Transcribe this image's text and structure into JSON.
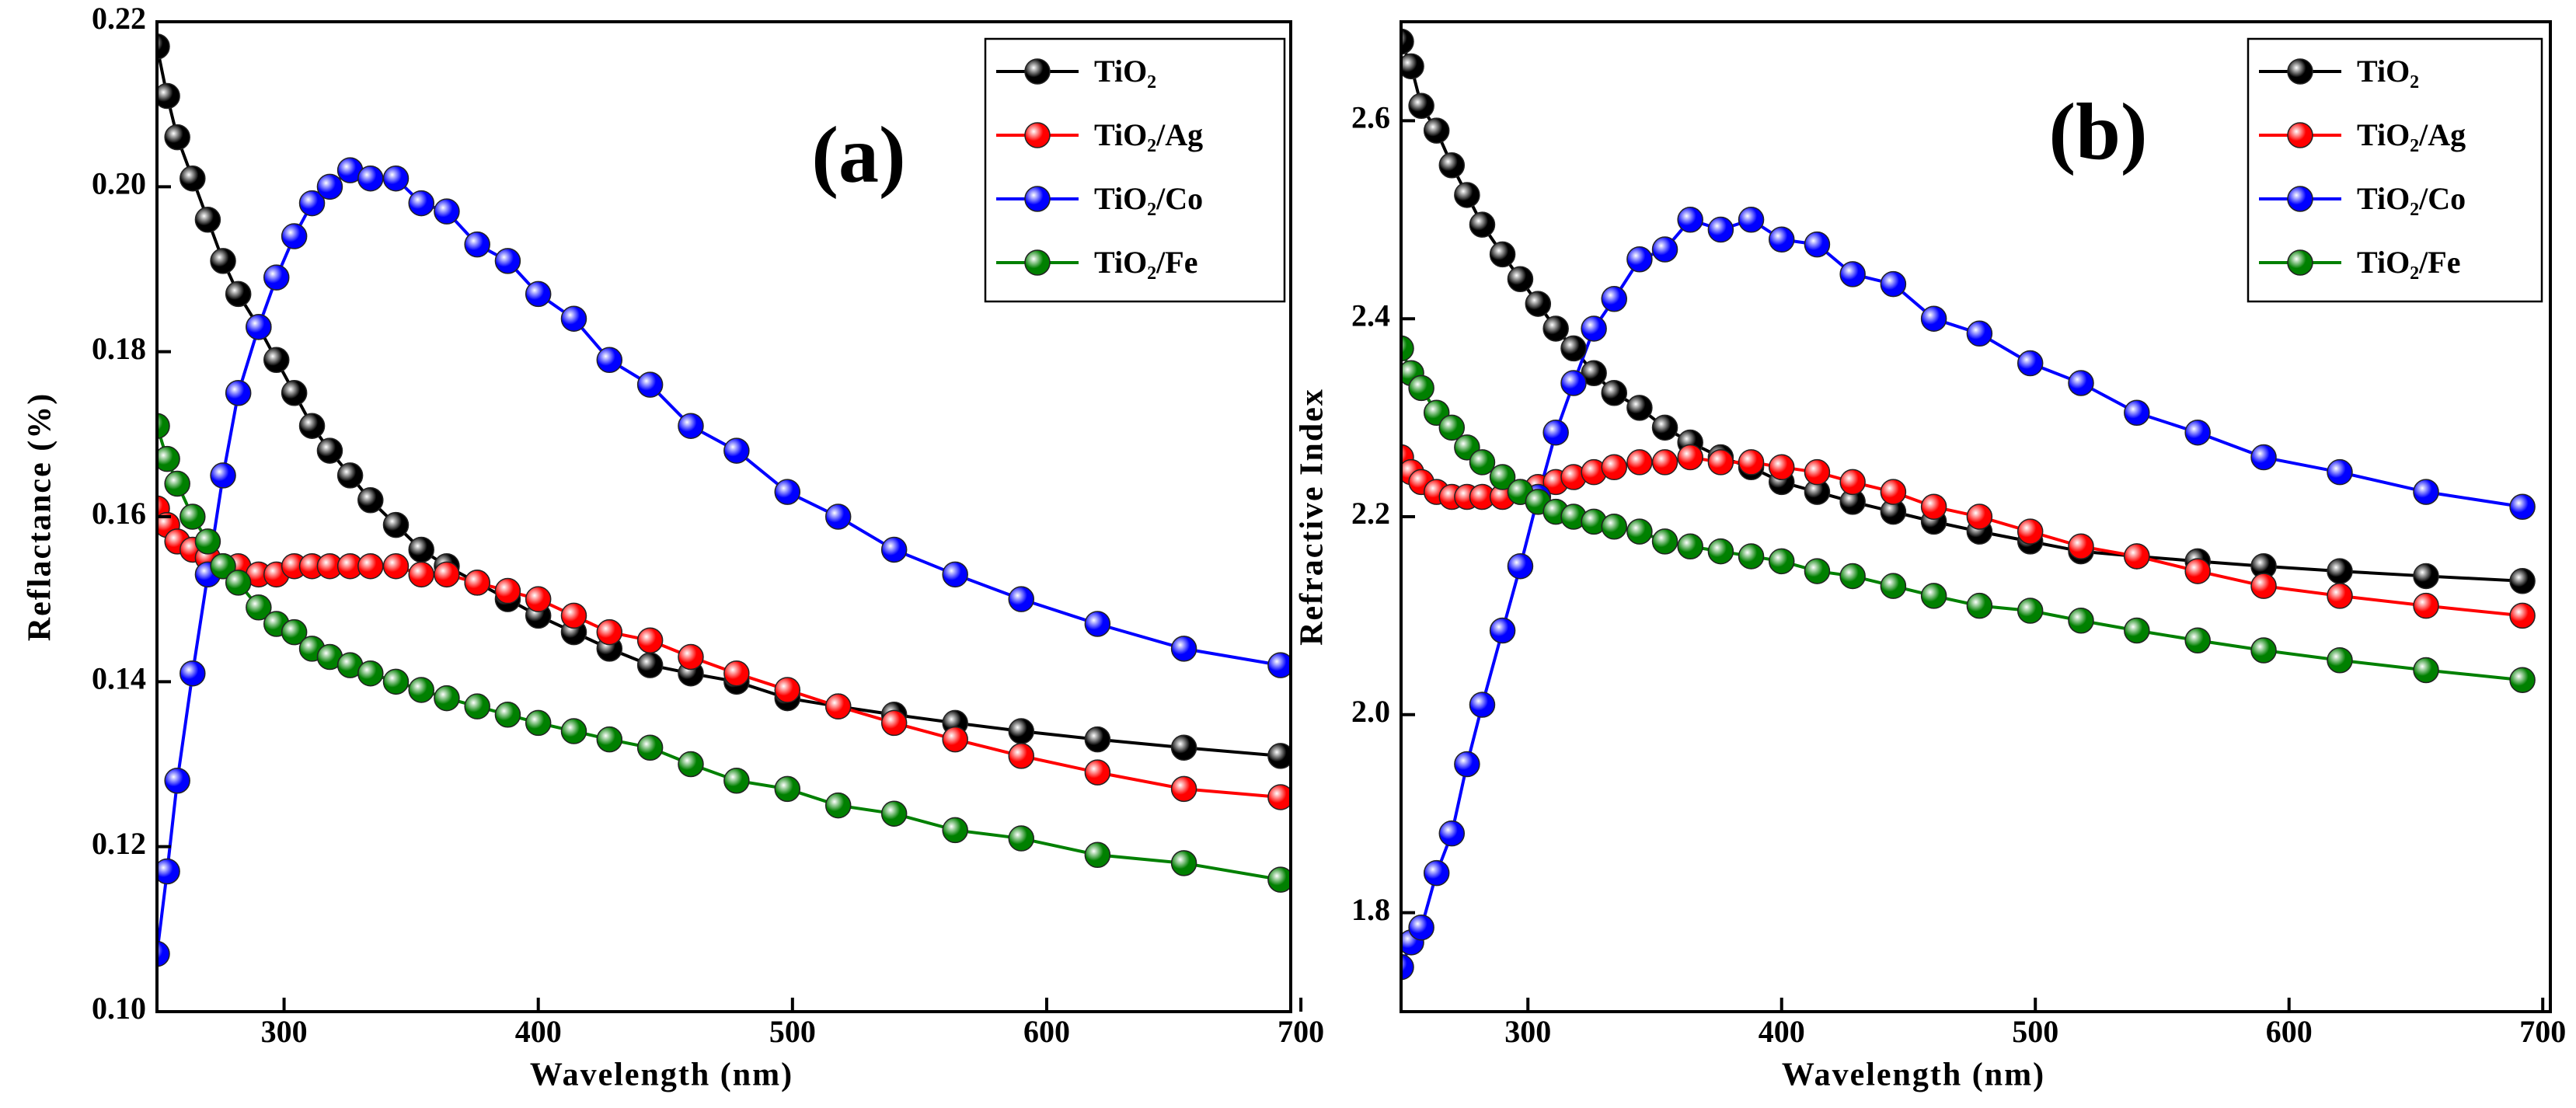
{
  "chart_data": [
    {
      "type": "line",
      "annotation": "(a)",
      "x_label": "Wavelength (nm)",
      "y_label": "Reflactance (%)",
      "xlim": [
        250,
        696
      ],
      "ylim": [
        0.1,
        0.22
      ],
      "xticks": [
        300,
        400,
        500,
        600,
        700
      ],
      "yticks": [
        {
          "value": 0.1,
          "label": "0.10"
        },
        0.12,
        0.14,
        0.16,
        0.18,
        {
          "value": 0.2,
          "label": "0.20"
        },
        0.22
      ],
      "x": [
        250,
        254,
        258,
        264,
        270,
        276,
        282,
        290,
        297,
        304,
        311,
        318,
        326,
        334,
        344,
        354,
        364,
        376,
        388,
        400,
        414,
        428,
        444,
        460,
        478,
        498,
        518,
        540,
        564,
        590,
        620,
        654,
        692
      ],
      "series": [
        {
          "name": "TiO₂",
          "color": "#000000",
          "values": [
            0.217,
            0.211,
            0.206,
            0.201,
            0.196,
            0.191,
            0.187,
            0.183,
            0.179,
            0.175,
            0.171,
            0.168,
            0.165,
            0.162,
            0.159,
            0.156,
            0.154,
            0.152,
            0.15,
            0.148,
            0.146,
            0.144,
            0.142,
            0.141,
            0.14,
            0.138,
            0.137,
            0.136,
            0.135,
            0.134,
            0.133,
            0.132,
            0.131
          ]
        },
        {
          "name": "TiO₂/Ag",
          "color": "#ff0000",
          "values": [
            0.161,
            0.159,
            0.157,
            0.156,
            0.155,
            0.154,
            0.154,
            0.153,
            0.153,
            0.154,
            0.154,
            0.154,
            0.154,
            0.154,
            0.154,
            0.153,
            0.153,
            0.152,
            0.151,
            0.15,
            0.148,
            0.146,
            0.145,
            0.143,
            0.141,
            0.139,
            0.137,
            0.135,
            0.133,
            0.131,
            0.129,
            0.127,
            0.126
          ]
        },
        {
          "name": "TiO₂/Co",
          "color": "#0000ff",
          "values": [
            0.107,
            0.117,
            0.128,
            0.141,
            0.153,
            0.165,
            0.175,
            0.183,
            0.189,
            0.194,
            0.198,
            0.2,
            0.202,
            0.201,
            0.201,
            0.198,
            0.197,
            0.193,
            0.191,
            0.187,
            0.184,
            0.179,
            0.176,
            0.171,
            0.168,
            0.163,
            0.16,
            0.156,
            0.153,
            0.15,
            0.147,
            0.144,
            0.142
          ]
        },
        {
          "name": "TiO₂/Fe",
          "color": "#008000",
          "values": [
            0.171,
            0.167,
            0.164,
            0.16,
            0.157,
            0.154,
            0.152,
            0.149,
            0.147,
            0.146,
            0.144,
            0.143,
            0.142,
            0.141,
            0.14,
            0.139,
            0.138,
            0.137,
            0.136,
            0.135,
            0.134,
            0.133,
            0.132,
            0.13,
            0.128,
            0.127,
            0.125,
            0.124,
            0.122,
            0.121,
            0.119,
            0.118,
            0.116
          ]
        }
      ]
    },
    {
      "type": "line",
      "annotation": "(b)",
      "x_label": "Wavelength (nm)",
      "y_label": "Refractive Index",
      "xlim": [
        250,
        703
      ],
      "ylim": [
        1.7,
        2.7
      ],
      "xticks": [
        300,
        400,
        500,
        600,
        700
      ],
      "yticks": [
        1.8,
        {
          "value": 2,
          "label": "2.0"
        },
        2.2,
        2.4,
        2.6
      ],
      "x": [
        250,
        254,
        258,
        264,
        270,
        276,
        282,
        290,
        297,
        304,
        311,
        318,
        326,
        334,
        344,
        354,
        364,
        376,
        388,
        400,
        414,
        428,
        444,
        460,
        478,
        498,
        518,
        540,
        564,
        590,
        620,
        654,
        692
      ],
      "series": [
        {
          "name": "TiO₂",
          "color": "#000000",
          "values": [
            2.68,
            2.655,
            2.615,
            2.59,
            2.555,
            2.525,
            2.495,
            2.465,
            2.44,
            2.415,
            2.39,
            2.37,
            2.345,
            2.325,
            2.31,
            2.29,
            2.275,
            2.26,
            2.25,
            2.235,
            2.225,
            2.215,
            2.205,
            2.195,
            2.185,
            2.175,
            2.165,
            2.16,
            2.155,
            2.15,
            2.145,
            2.14,
            2.135
          ]
        },
        {
          "name": "TiO₂/Ag",
          "color": "#ff0000",
          "values": [
            2.26,
            2.245,
            2.235,
            2.225,
            2.22,
            2.22,
            2.22,
            2.22,
            2.225,
            2.23,
            2.235,
            2.24,
            2.245,
            2.25,
            2.255,
            2.255,
            2.26,
            2.255,
            2.255,
            2.25,
            2.245,
            2.235,
            2.225,
            2.21,
            2.2,
            2.185,
            2.17,
            2.16,
            2.145,
            2.13,
            2.12,
            2.11,
            2.1
          ]
        },
        {
          "name": "TiO₂/Co",
          "color": "#0000ff",
          "values": [
            1.745,
            1.77,
            1.785,
            1.84,
            1.88,
            1.95,
            2.01,
            2.085,
            2.15,
            2.22,
            2.285,
            2.335,
            2.39,
            2.42,
            2.46,
            2.47,
            2.5,
            2.49,
            2.5,
            2.48,
            2.475,
            2.445,
            2.435,
            2.4,
            2.385,
            2.355,
            2.335,
            2.305,
            2.285,
            2.26,
            2.245,
            2.225,
            2.21
          ]
        },
        {
          "name": "TiO₂/Fe",
          "color": "#008000",
          "values": [
            2.37,
            2.345,
            2.33,
            2.305,
            2.29,
            2.27,
            2.255,
            2.24,
            2.225,
            2.215,
            2.205,
            2.2,
            2.195,
            2.19,
            2.185,
            2.175,
            2.17,
            2.165,
            2.16,
            2.155,
            2.145,
            2.14,
            2.13,
            2.12,
            2.11,
            2.105,
            2.095,
            2.085,
            2.075,
            2.065,
            2.055,
            2.045,
            2.035
          ]
        }
      ]
    }
  ]
}
